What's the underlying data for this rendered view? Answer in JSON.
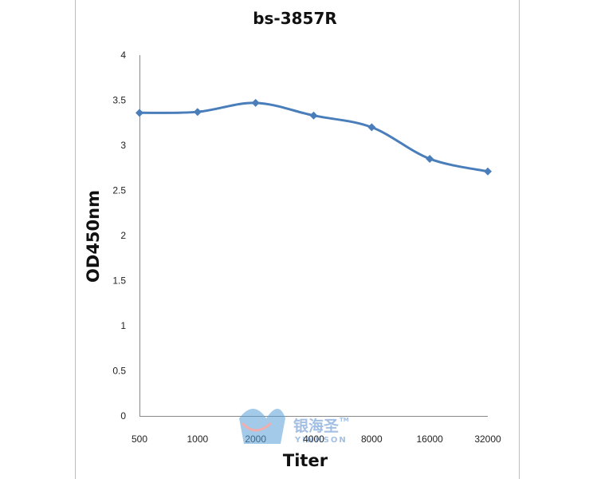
{
  "chart_data": {
    "type": "line",
    "title": "bs-3857R",
    "xlabel": "Titer",
    "ylabel": "OD450nm",
    "categories": [
      "500",
      "1000",
      "2000",
      "4000",
      "8000",
      "16000",
      "32000"
    ],
    "series": [
      {
        "values": [
          3.36,
          3.37,
          3.47,
          3.33,
          3.2,
          2.85,
          2.71
        ]
      }
    ],
    "ylim": [
      0,
      4
    ],
    "yticks": [
      "0",
      "0.5",
      "1",
      "1.5",
      "2",
      "2.5",
      "3",
      "3.5",
      "4"
    ],
    "grid": false,
    "legend": "none",
    "line_color": "#4a7ebb",
    "marker": "diamond"
  },
  "watermark": {
    "brand_cn": "银海圣",
    "brand_en": "YINHSON",
    "tm": "TM"
  }
}
